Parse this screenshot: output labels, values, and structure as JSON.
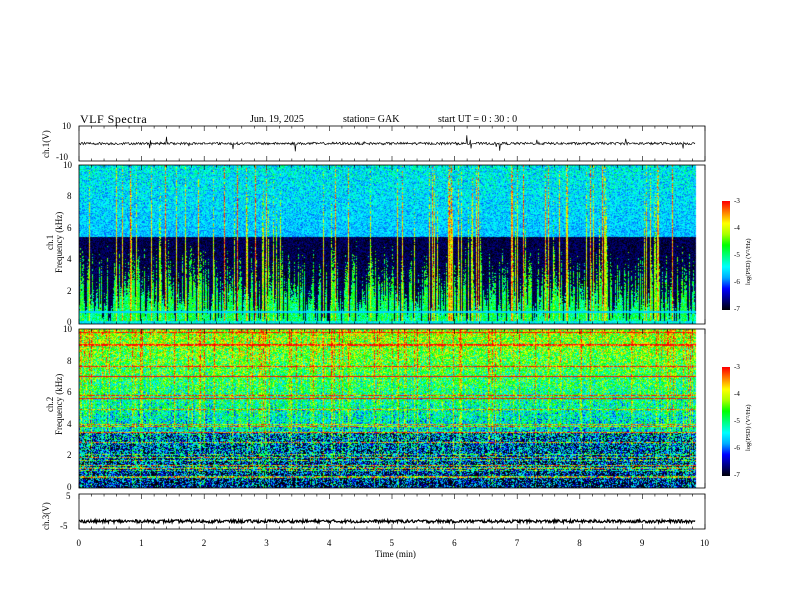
{
  "header": {
    "title": "VLF  Spectra",
    "date": "Jun. 19, 2025",
    "station": "station= GAK",
    "start_ut": "start  UT  =    0  : 30 : 0"
  },
  "chart_data": [
    {
      "type": "line",
      "panel": "ch1-waveform",
      "ylabel": "ch.1(V)",
      "ylim": [
        -10,
        10
      ],
      "y_ticks": [
        "10",
        "-10"
      ],
      "x_range_min": [
        0,
        9.85
      ],
      "mean_level": 0,
      "line_color": "#000000"
    },
    {
      "type": "heatmap",
      "panel": "ch1-spectrogram",
      "ylabel_line1": "ch.1",
      "ylabel_line2": "Frequency  (kHz)",
      "ylim_khz": [
        0,
        10
      ],
      "y_ticks": [
        "0",
        "2",
        "4",
        "6",
        "8",
        "10"
      ],
      "x_range_min": [
        0,
        9.85
      ],
      "colorbar": {
        "label": "log(PSD) (V²/Hz)",
        "range": [
          -7,
          -3
        ],
        "ticks": [
          "-3",
          "-4",
          "-5",
          "-6",
          "-7"
        ]
      },
      "persistent_line_khz": 0.8
    },
    {
      "type": "heatmap",
      "panel": "ch2-spectrogram",
      "ylabel_line1": "ch.2",
      "ylabel_line2": "Frequency  (kHz)",
      "ylim_khz": [
        0,
        10
      ],
      "y_ticks": [
        "0",
        "2",
        "4",
        "6",
        "8",
        "10"
      ],
      "x_range_min": [
        0,
        9.85
      ],
      "colorbar": {
        "label": "log(PSD) (V²/Hz)",
        "range": [
          -7,
          -3
        ],
        "ticks": [
          "-3",
          "-4",
          "-5",
          "-6",
          "-7"
        ]
      }
    },
    {
      "type": "line",
      "panel": "ch3-waveform",
      "ylabel": "ch.3(V)",
      "ylim": [
        -5,
        5
      ],
      "y_ticks": [
        "5",
        "-5"
      ],
      "x_range_min": [
        0,
        9.85
      ],
      "mean_level": -2.8,
      "line_color": "#000000"
    }
  ],
  "x_axis": {
    "label": "Time  (min)",
    "range": [
      0,
      10
    ],
    "ticks": [
      "0",
      "1",
      "2",
      "3",
      "4",
      "5",
      "6",
      "7",
      "8",
      "9",
      "10"
    ]
  },
  "colormap": [
    "#000000",
    "#000080",
    "#0000ff",
    "#00aaff",
    "#00ffff",
    "#00ff80",
    "#00ff00",
    "#aaff00",
    "#ffff00",
    "#ff8000",
    "#ff0000",
    "#ffffff"
  ]
}
